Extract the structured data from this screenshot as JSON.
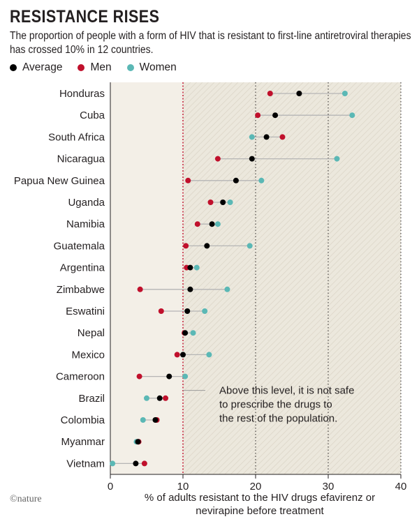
{
  "header": {
    "title": "RESISTANCE RISES",
    "subtitle": "The proportion of people with a form of HIV that is resistant to first-line antiretroviral therapies has crossed 10% in 12 countries."
  },
  "legend": {
    "items": [
      {
        "label": "Average",
        "color": "#000000"
      },
      {
        "label": "Men",
        "color": "#c0102c"
      },
      {
        "label": "Women",
        "color": "#5bb8b5"
      }
    ]
  },
  "credit": "©nature",
  "chart_data": {
    "type": "scatter",
    "subtype": "dumbbell",
    "xlabel_lines": [
      "% of adults resistant to the HIV drugs efavirenz or",
      "nevirapine before treatment"
    ],
    "xlim": [
      0,
      40
    ],
    "xticks": [
      "0",
      "10",
      "20",
      "30",
      "40"
    ],
    "threshold": 10,
    "annotation_lines": [
      "Above this level, it is not safe",
      "to prescribe the drugs to",
      "the rest of the population."
    ],
    "colors": {
      "average": "#000000",
      "men": "#c0102c",
      "women": "#5bb8b5",
      "below_bg": "#f3efe7",
      "above_bg": "#ece8dd",
      "threshold_line": "#c0102c"
    },
    "grid": "dotted vertical at 20, 30, 40",
    "countries": [
      {
        "name": "Honduras",
        "average": 26.0,
        "men": 22.0,
        "women": 32.3
      },
      {
        "name": "Cuba",
        "average": 22.7,
        "men": 20.3,
        "women": 33.3
      },
      {
        "name": "South Africa",
        "average": 21.5,
        "men": 23.7,
        "women": 19.5
      },
      {
        "name": "Nicaragua",
        "average": 19.5,
        "men": 14.8,
        "women": 31.2
      },
      {
        "name": "Papua New Guinea",
        "average": 17.3,
        "men": 10.7,
        "women": 20.8
      },
      {
        "name": "Uganda",
        "average": 15.5,
        "men": 13.8,
        "women": 16.5
      },
      {
        "name": "Namibia",
        "average": 14.0,
        "men": 12.0,
        "women": 14.8
      },
      {
        "name": "Guatemala",
        "average": 13.3,
        "men": 10.4,
        "women": 19.2
      },
      {
        "name": "Argentina",
        "average": 11.0,
        "men": 10.5,
        "women": 11.9
      },
      {
        "name": "Zimbabwe",
        "average": 11.0,
        "men": 4.1,
        "women": 16.1
      },
      {
        "name": "Eswatini",
        "average": 10.6,
        "men": 7.0,
        "women": 13.0
      },
      {
        "name": "Nepal",
        "average": 10.3,
        "men": 10.2,
        "women": 11.4
      },
      {
        "name": "Mexico",
        "average": 10.0,
        "men": 9.2,
        "women": 13.6
      },
      {
        "name": "Cameroon",
        "average": 8.1,
        "men": 4.0,
        "women": 10.3
      },
      {
        "name": "Brazil",
        "average": 6.8,
        "men": 7.6,
        "women": 5.0
      },
      {
        "name": "Colombia",
        "average": 6.2,
        "men": 6.4,
        "women": 4.5
      },
      {
        "name": "Myanmar",
        "average": 3.8,
        "men": 3.9,
        "women": 3.6
      },
      {
        "name": "Vietnam",
        "average": 3.5,
        "men": 4.7,
        "women": 0.3
      }
    ]
  }
}
